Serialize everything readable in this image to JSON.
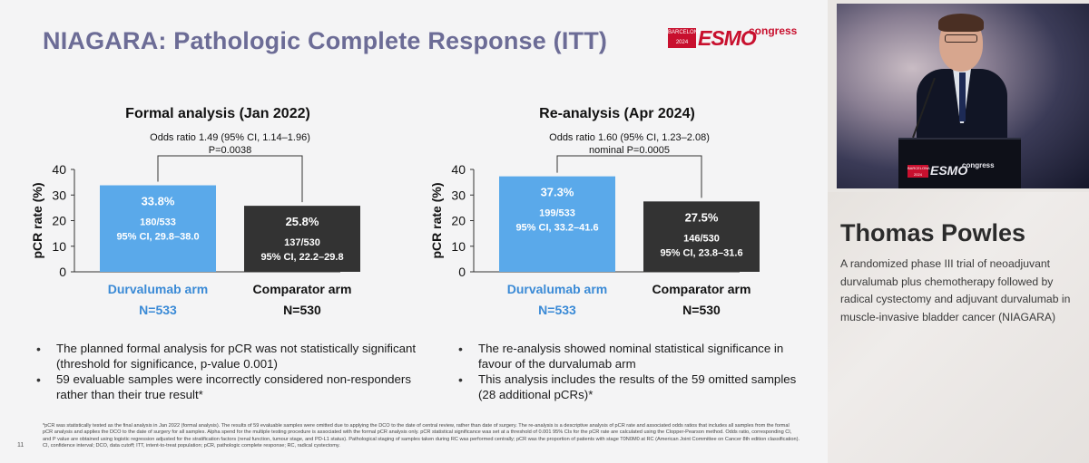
{
  "slide": {
    "title": "NIAGARA: Pathologic Complete Response (ITT)",
    "logo": {
      "city": "BARCELONA 2024",
      "brand": "ESMO",
      "suffix": "congress"
    },
    "page_number": "11",
    "bullets_left": [
      "The planned formal analysis for pCR was not statistically significant (threshold for significance, p-value 0.001)",
      "59 evaluable samples were incorrectly considered non-responders rather than their true result*"
    ],
    "bullets_right": [
      "The re-analysis showed nominal statistical significance in favour of the durvalumab arm",
      "This analysis includes the results of the 59 omitted samples (28 additional pCRs)*"
    ],
    "footnote": "*pCR was statistically tested as the final analysis in Jan 2022 (formal analysis). The results of 59 evaluable samples were omitted due to applying the DCO to the date of central review, rather than date of surgery. The re-analysis is a descriptive analysis of pCR rate and associated odds ratios that includes all samples from the formal pCR analysis and applies the DCO to the date of surgery for all samples. Alpha spend for the multiple testing procedure is associated with the formal pCR analysis only. pCR statistical significance was set at a threshold of 0.001 95% CIs for the pCR rate are calculated using the Clopper-Pearson method. Odds ratio, corresponding CI, and P value are obtained using logistic regression adjusted for the stratification factors (renal function, tumour stage, and PD-L1 status). Pathological staging of samples taken during RC was performed centrally; pCR was the proportion of patients with stage T0N0M0 at RC (American Joint Committee on Cancer 8th edition classification). CI, confidence interval; DCO, data cutoff; ITT, intent-to-treat population; pCR, pathologic complete response; RC, radical cystectomy."
  },
  "presenter": {
    "name": "Thomas Powles",
    "description": "A randomized phase III trial of neoadjuvant durvalumab plus chemotherapy followed by radical cystectomy and adjuvant durvalumab in muscle-invasive bladder cancer (NIAGARA)",
    "podium_logo": {
      "city": "BARCELONA 2024",
      "brand": "ESMO",
      "suffix": "congress"
    }
  },
  "colors": {
    "durvalumab": "#5aa9ea",
    "comparator": "#333333",
    "durvalumab_text": "#3a8ad6",
    "title": "#6c6c96",
    "brand": "#c8102e"
  },
  "chart_data": [
    {
      "type": "bar",
      "title": "Formal analysis (Jan 2022)",
      "ylabel": "pCR rate (%)",
      "ylim": [
        0,
        40
      ],
      "yticks": [
        "0",
        "10",
        "20",
        "30",
        "40"
      ],
      "stat_line1": "Odds ratio 1.49 (95% CI, 1.14–1.96)",
      "stat_line2": "P=0.0038",
      "categories": [
        "Durvalumab arm",
        "Comparator arm"
      ],
      "n_labels": [
        "N=533",
        "N=530"
      ],
      "values": [
        33.8,
        25.8
      ],
      "value_labels": [
        "33.8%",
        "25.8%"
      ],
      "detail_lines": [
        [
          "180/533",
          "95% CI, 29.8–38.0"
        ],
        [
          "137/530",
          "95% CI, 22.2–29.8"
        ]
      ]
    },
    {
      "type": "bar",
      "title": "Re-analysis (Apr 2024)",
      "ylabel": "pCR rate (%)",
      "ylim": [
        0,
        40
      ],
      "yticks": [
        "0",
        "10",
        "20",
        "30",
        "40"
      ],
      "stat_line1": "Odds ratio 1.60 (95% CI, 1.23–2.08)",
      "stat_line2": "nominal P=0.0005",
      "categories": [
        "Durvalumab arm",
        "Comparator arm"
      ],
      "n_labels": [
        "N=533",
        "N=530"
      ],
      "values": [
        37.3,
        27.5
      ],
      "value_labels": [
        "37.3%",
        "27.5%"
      ],
      "detail_lines": [
        [
          "199/533",
          "95% CI, 33.2–41.6"
        ],
        [
          "146/530",
          "95% CI, 23.8–31.6"
        ]
      ]
    }
  ]
}
